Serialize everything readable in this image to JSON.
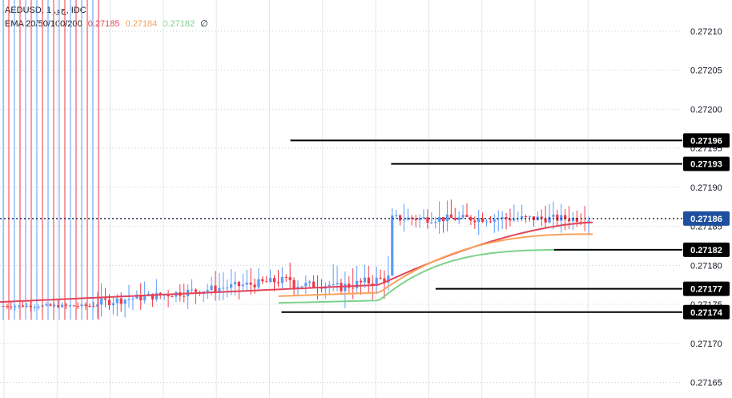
{
  "header": {
    "symbol_line": "AEDUSD, 1 ,ﺝﻭ, IDC",
    "ema_label": "EMA 20/50/100/200",
    "ema_values": [
      "0.27185",
      "0.27184",
      "0.27182"
    ],
    "ema_null": "∅"
  },
  "colors": {
    "up": "#5b9cf6",
    "down": "#f23645",
    "ema20": "#e0455a",
    "ema50": "#f7a35c",
    "ema100": "#7fd18a",
    "grid": "#c9cdd6",
    "current_price_bg": "#1e4fa0",
    "level_bg": "#000000"
  },
  "chart_data": {
    "type": "candlestick",
    "y_axis": {
      "ticks": [
        "0.27210",
        "0.27205",
        "0.27200",
        "0.27195",
        "0.27190",
        "0.27185",
        "0.27180",
        "0.27175",
        "0.27170",
        "0.27165"
      ],
      "ylim": [
        0.27163,
        0.27214
      ]
    },
    "current_price": "0.27186",
    "levels": [
      {
        "label": "0.27196",
        "value": 0.27196,
        "x_start": 0.49
      },
      {
        "label": "0.27193",
        "value": 0.27193,
        "x_start": 0.66
      },
      {
        "label": "0.27182",
        "value": 0.27182,
        "x_start": 0.935
      },
      {
        "label": "0.27177",
        "value": 0.27177,
        "x_start": 0.735
      },
      {
        "label": "0.27174",
        "value": 0.27174,
        "x_start": 0.475
      }
    ],
    "segments": [
      {
        "from": 0.0,
        "to": 0.16,
        "base": 0.271748,
        "drift": 0.0,
        "range": 1.2e-05
      },
      {
        "from": 0.16,
        "to": 0.49,
        "base": 0.271752,
        "drift": 3e-05,
        "range": 3.5e-05
      },
      {
        "from": 0.49,
        "to": 0.56,
        "base": 0.271775,
        "drift": 0.0,
        "range": 3.5e-05
      },
      {
        "from": 0.56,
        "to": 0.66,
        "base": 0.27177,
        "drift": 1.4e-05,
        "range": 4.5e-05
      },
      {
        "from": 0.66,
        "to": 1.0,
        "base": 0.27186,
        "drift": 0.0,
        "range": 3.5e-05
      }
    ],
    "spikes_left_count": 18,
    "ema": [
      {
        "name": "EMA 20",
        "value": "0.27185",
        "start": 0.271753,
        "mid": 0.271775,
        "end": 0.271855
      },
      {
        "name": "EMA 50",
        "value": "0.27184",
        "start": 0.271748,
        "mid": 0.271765,
        "end": 0.27184
      },
      {
        "name": "EMA 100",
        "value": "0.27182",
        "start": 0.271743,
        "mid": 0.271755,
        "end": 0.27182
      }
    ]
  }
}
